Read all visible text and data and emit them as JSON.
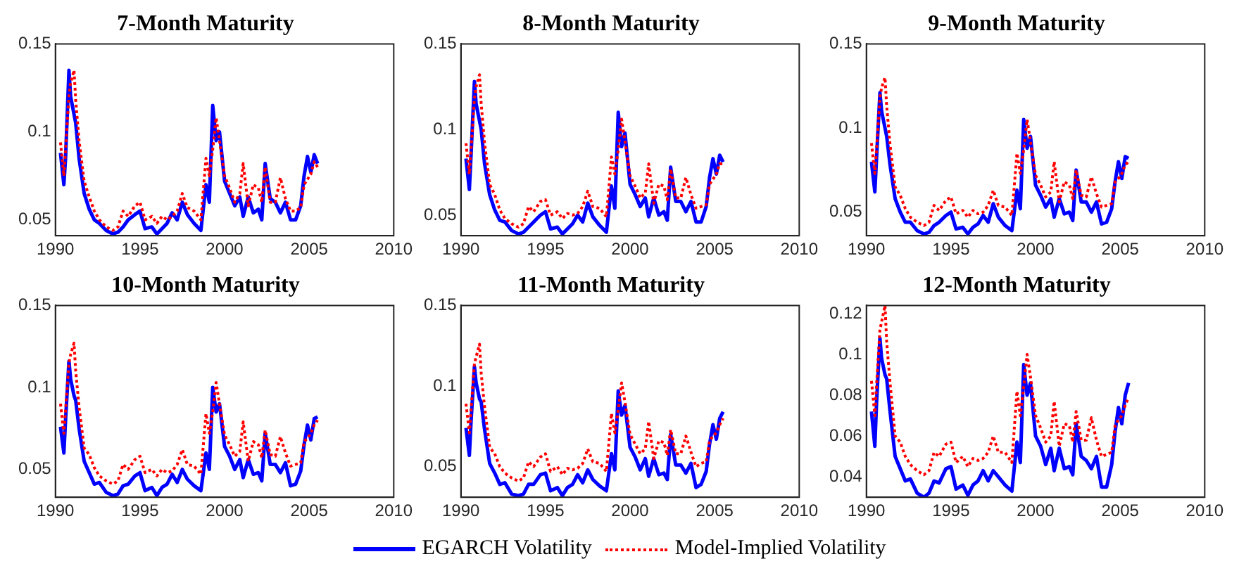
{
  "chart_data": [
    {
      "type": "line",
      "title": "7-Month Maturity",
      "xlim": [
        1990,
        2010
      ],
      "xticks": [
        1990,
        1995,
        2000,
        2005,
        2010
      ],
      "ylim": [
        0.041,
        0.15
      ],
      "yticks": [
        0.05,
        0.1,
        0.15
      ],
      "grid": false,
      "legend": "bottom",
      "marker": "none",
      "x": [
        1990.3,
        1990.5,
        1990.6,
        1990.8,
        1990.9,
        1991.1,
        1991.2,
        1991.4,
        1991.7,
        1992.0,
        1992.3,
        1992.6,
        1993.0,
        1993.4,
        1993.7,
        1994.0,
        1994.3,
        1994.7,
        1995.0,
        1995.3,
        1995.7,
        1996.0,
        1996.3,
        1996.6,
        1996.9,
        1997.2,
        1997.5,
        1997.8,
        1998.2,
        1998.6,
        1998.9,
        1999.1,
        1999.3,
        1999.5,
        1999.7,
        2000.0,
        2000.3,
        2000.6,
        2000.9,
        2001.1,
        2001.4,
        2001.7,
        2002.0,
        2002.2,
        2002.4,
        2002.7,
        2003.0,
        2003.3,
        2003.6,
        2003.9,
        2004.2,
        2004.5,
        2004.7,
        2004.9,
        2005.1,
        2005.3,
        2005.5
      ],
      "series": [
        {
          "name": "EGARCH Volatility",
          "color": "#0000ff",
          "line_style": "solid",
          "values": [
            0.088,
            0.07,
            0.085,
            0.135,
            0.12,
            0.11,
            0.105,
            0.085,
            0.065,
            0.056,
            0.05,
            0.048,
            0.044,
            0.042,
            0.043,
            0.046,
            0.05,
            0.053,
            0.055,
            0.045,
            0.046,
            0.042,
            0.045,
            0.048,
            0.054,
            0.05,
            0.06,
            0.053,
            0.048,
            0.044,
            0.07,
            0.06,
            0.115,
            0.095,
            0.1,
            0.072,
            0.065,
            0.058,
            0.063,
            0.052,
            0.063,
            0.054,
            0.056,
            0.05,
            0.082,
            0.062,
            0.06,
            0.054,
            0.06,
            0.05,
            0.05,
            0.058,
            0.075,
            0.086,
            0.077,
            0.087,
            0.082
          ]
        },
        {
          "name": "Model-Implied Volatility",
          "color": "#ff0000",
          "line_style": "dotted",
          "values": [
            0.094,
            0.075,
            0.09,
            0.12,
            0.128,
            0.135,
            0.118,
            0.095,
            0.072,
            0.063,
            0.055,
            0.05,
            0.046,
            0.044,
            0.046,
            0.055,
            0.052,
            0.058,
            0.06,
            0.05,
            0.052,
            0.048,
            0.052,
            0.05,
            0.052,
            0.055,
            0.065,
            0.057,
            0.055,
            0.05,
            0.085,
            0.075,
            0.09,
            0.108,
            0.095,
            0.075,
            0.068,
            0.06,
            0.065,
            0.082,
            0.058,
            0.07,
            0.068,
            0.06,
            0.08,
            0.06,
            0.06,
            0.074,
            0.062,
            0.055,
            0.055,
            0.057,
            0.07,
            0.073,
            0.076,
            0.083,
            0.08
          ]
        }
      ]
    },
    {
      "type": "line",
      "title": "8-Month Maturity",
      "xlim": [
        1990,
        2010
      ],
      "xticks": [
        1990,
        1995,
        2000,
        2005,
        2010
      ],
      "ylim": [
        0.038,
        0.15
      ],
      "yticks": [
        0.05,
        0.1,
        0.15
      ],
      "grid": false,
      "legend": "bottom",
      "marker": "none",
      "x": [
        1990.3,
        1990.5,
        1990.6,
        1990.8,
        1990.9,
        1991.1,
        1991.2,
        1991.4,
        1991.7,
        1992.0,
        1992.3,
        1992.6,
        1993.0,
        1993.4,
        1993.7,
        1994.0,
        1994.3,
        1994.7,
        1995.0,
        1995.3,
        1995.7,
        1996.0,
        1996.3,
        1996.6,
        1996.9,
        1997.2,
        1997.5,
        1997.8,
        1998.2,
        1998.6,
        1998.9,
        1999.1,
        1999.3,
        1999.5,
        1999.7,
        2000.0,
        2000.3,
        2000.6,
        2000.9,
        2001.1,
        2001.4,
        2001.7,
        2002.0,
        2002.2,
        2002.4,
        2002.7,
        2003.0,
        2003.3,
        2003.6,
        2003.9,
        2004.2,
        2004.5,
        2004.7,
        2004.9,
        2005.1,
        2005.3,
        2005.5
      ],
      "series": [
        {
          "name": "EGARCH Volatility",
          "color": "#0000ff",
          "line_style": "solid",
          "values": [
            0.083,
            0.065,
            0.085,
            0.128,
            0.115,
            0.105,
            0.1,
            0.08,
            0.062,
            0.053,
            0.047,
            0.046,
            0.041,
            0.039,
            0.04,
            0.043,
            0.046,
            0.05,
            0.052,
            0.042,
            0.043,
            0.039,
            0.042,
            0.045,
            0.05,
            0.046,
            0.057,
            0.049,
            0.044,
            0.04,
            0.067,
            0.054,
            0.11,
            0.09,
            0.098,
            0.068,
            0.062,
            0.055,
            0.06,
            0.049,
            0.06,
            0.05,
            0.052,
            0.047,
            0.078,
            0.058,
            0.058,
            0.052,
            0.058,
            0.046,
            0.046,
            0.055,
            0.072,
            0.083,
            0.074,
            0.085,
            0.081
          ]
        },
        {
          "name": "Model-Implied Volatility",
          "color": "#ff0000",
          "line_style": "dotted",
          "values": [
            0.092,
            0.074,
            0.088,
            0.118,
            0.125,
            0.132,
            0.115,
            0.092,
            0.068,
            0.062,
            0.053,
            0.048,
            0.045,
            0.043,
            0.045,
            0.055,
            0.052,
            0.058,
            0.059,
            0.05,
            0.052,
            0.048,
            0.051,
            0.05,
            0.051,
            0.055,
            0.064,
            0.055,
            0.054,
            0.049,
            0.084,
            0.074,
            0.088,
            0.106,
            0.093,
            0.073,
            0.067,
            0.06,
            0.063,
            0.08,
            0.057,
            0.068,
            0.067,
            0.059,
            0.077,
            0.06,
            0.06,
            0.072,
            0.062,
            0.054,
            0.055,
            0.056,
            0.068,
            0.071,
            0.074,
            0.08,
            0.08
          ]
        }
      ]
    },
    {
      "type": "line",
      "title": "9-Month Maturity",
      "xlim": [
        1990,
        2010
      ],
      "xticks": [
        1990,
        1995,
        2000,
        2005,
        2010
      ],
      "ylim": [
        0.036,
        0.15
      ],
      "yticks": [
        0.05,
        0.1,
        0.15
      ],
      "grid": false,
      "legend": "bottom",
      "marker": "none",
      "x": [
        1990.3,
        1990.5,
        1990.6,
        1990.8,
        1990.9,
        1991.1,
        1991.2,
        1991.4,
        1991.7,
        1992.0,
        1992.3,
        1992.6,
        1993.0,
        1993.4,
        1993.7,
        1994.0,
        1994.3,
        1994.7,
        1995.0,
        1995.3,
        1995.7,
        1996.0,
        1996.3,
        1996.6,
        1996.9,
        1997.2,
        1997.5,
        1997.8,
        1998.2,
        1998.6,
        1998.9,
        1999.1,
        1999.3,
        1999.5,
        1999.7,
        2000.0,
        2000.3,
        2000.6,
        2000.9,
        2001.1,
        2001.4,
        2001.7,
        2002.0,
        2002.2,
        2002.4,
        2002.7,
        2003.0,
        2003.3,
        2003.6,
        2003.9,
        2004.2,
        2004.5,
        2004.7,
        2004.9,
        2005.1,
        2005.3,
        2005.5
      ],
      "series": [
        {
          "name": "EGARCH Volatility",
          "color": "#0000ff",
          "line_style": "solid",
          "values": [
            0.08,
            0.062,
            0.082,
            0.121,
            0.11,
            0.1,
            0.095,
            0.078,
            0.058,
            0.05,
            0.044,
            0.044,
            0.039,
            0.037,
            0.038,
            0.042,
            0.044,
            0.048,
            0.05,
            0.04,
            0.041,
            0.037,
            0.041,
            0.043,
            0.048,
            0.044,
            0.055,
            0.047,
            0.042,
            0.039,
            0.063,
            0.052,
            0.105,
            0.088,
            0.095,
            0.066,
            0.06,
            0.053,
            0.058,
            0.047,
            0.058,
            0.049,
            0.05,
            0.045,
            0.075,
            0.056,
            0.056,
            0.05,
            0.056,
            0.043,
            0.044,
            0.052,
            0.068,
            0.08,
            0.07,
            0.083,
            0.082
          ]
        },
        {
          "name": "Model-Implied Volatility",
          "color": "#ff0000",
          "line_style": "dotted",
          "values": [
            0.091,
            0.073,
            0.087,
            0.118,
            0.124,
            0.13,
            0.113,
            0.09,
            0.065,
            0.06,
            0.052,
            0.047,
            0.044,
            0.042,
            0.044,
            0.054,
            0.051,
            0.057,
            0.059,
            0.049,
            0.051,
            0.047,
            0.051,
            0.049,
            0.05,
            0.054,
            0.063,
            0.054,
            0.053,
            0.048,
            0.085,
            0.073,
            0.087,
            0.105,
            0.092,
            0.072,
            0.066,
            0.059,
            0.062,
            0.08,
            0.056,
            0.068,
            0.066,
            0.058,
            0.075,
            0.06,
            0.059,
            0.071,
            0.061,
            0.053,
            0.054,
            0.055,
            0.068,
            0.07,
            0.073,
            0.078,
            0.08
          ]
        }
      ]
    },
    {
      "type": "line",
      "title": "10-Month Maturity",
      "xlim": [
        1990,
        2010
      ],
      "xticks": [
        1990,
        1995,
        2000,
        2005,
        2010
      ],
      "ylim": [
        0.033,
        0.15
      ],
      "yticks": [
        0.05,
        0.1,
        0.15
      ],
      "grid": false,
      "legend": "bottom",
      "marker": "none",
      "x": [
        1990.3,
        1990.5,
        1990.6,
        1990.8,
        1990.9,
        1991.1,
        1991.2,
        1991.4,
        1991.7,
        1992.0,
        1992.3,
        1992.6,
        1993.0,
        1993.4,
        1993.7,
        1994.0,
        1994.3,
        1994.7,
        1995.0,
        1995.3,
        1995.7,
        1996.0,
        1996.3,
        1996.6,
        1996.9,
        1997.2,
        1997.5,
        1997.8,
        1998.2,
        1998.6,
        1998.9,
        1999.1,
        1999.3,
        1999.5,
        1999.7,
        2000.0,
        2000.3,
        2000.6,
        2000.9,
        2001.1,
        2001.4,
        2001.7,
        2002.0,
        2002.2,
        2002.4,
        2002.7,
        2003.0,
        2003.3,
        2003.6,
        2003.9,
        2004.2,
        2004.5,
        2004.7,
        2004.9,
        2005.1,
        2005.3,
        2005.5
      ],
      "series": [
        {
          "name": "EGARCH Volatility",
          "color": "#0000ff",
          "line_style": "solid",
          "values": [
            0.076,
            0.06,
            0.08,
            0.116,
            0.105,
            0.095,
            0.092,
            0.075,
            0.055,
            0.048,
            0.041,
            0.042,
            0.036,
            0.034,
            0.035,
            0.04,
            0.041,
            0.046,
            0.048,
            0.037,
            0.039,
            0.034,
            0.039,
            0.041,
            0.047,
            0.042,
            0.05,
            0.044,
            0.04,
            0.037,
            0.06,
            0.05,
            0.1,
            0.085,
            0.09,
            0.064,
            0.058,
            0.05,
            0.056,
            0.045,
            0.056,
            0.047,
            0.048,
            0.043,
            0.072,
            0.053,
            0.053,
            0.048,
            0.054,
            0.04,
            0.041,
            0.049,
            0.065,
            0.077,
            0.068,
            0.081,
            0.082
          ]
        },
        {
          "name": "Model-Implied Volatility",
          "color": "#ff0000",
          "line_style": "dotted",
          "values": [
            0.09,
            0.072,
            0.086,
            0.115,
            0.12,
            0.127,
            0.11,
            0.088,
            0.063,
            0.059,
            0.051,
            0.046,
            0.043,
            0.041,
            0.043,
            0.053,
            0.05,
            0.056,
            0.058,
            0.048,
            0.05,
            0.046,
            0.05,
            0.048,
            0.049,
            0.053,
            0.062,
            0.053,
            0.052,
            0.047,
            0.084,
            0.072,
            0.085,
            0.103,
            0.09,
            0.071,
            0.065,
            0.058,
            0.061,
            0.079,
            0.055,
            0.067,
            0.065,
            0.057,
            0.074,
            0.059,
            0.058,
            0.07,
            0.06,
            0.052,
            0.053,
            0.054,
            0.067,
            0.069,
            0.072,
            0.077,
            0.08
          ]
        }
      ]
    },
    {
      "type": "line",
      "title": "11-Month Maturity",
      "xlim": [
        1990,
        2010
      ],
      "xticks": [
        1990,
        1995,
        2000,
        2005,
        2010
      ],
      "ylim": [
        0.031,
        0.15
      ],
      "yticks": [
        0.05,
        0.1,
        0.15
      ],
      "grid": false,
      "legend": "bottom",
      "marker": "none",
      "x": [
        1990.3,
        1990.5,
        1990.6,
        1990.8,
        1990.9,
        1991.1,
        1991.2,
        1991.4,
        1991.7,
        1992.0,
        1992.3,
        1992.6,
        1993.0,
        1993.4,
        1993.7,
        1994.0,
        1994.3,
        1994.7,
        1995.0,
        1995.3,
        1995.7,
        1996.0,
        1996.3,
        1996.6,
        1996.9,
        1997.2,
        1997.5,
        1997.8,
        1998.2,
        1998.6,
        1998.9,
        1999.1,
        1999.3,
        1999.5,
        1999.7,
        2000.0,
        2000.3,
        2000.6,
        2000.9,
        2001.1,
        2001.4,
        2001.7,
        2002.0,
        2002.2,
        2002.4,
        2002.7,
        2003.0,
        2003.3,
        2003.6,
        2003.9,
        2004.2,
        2004.5,
        2004.7,
        2004.9,
        2005.1,
        2005.3,
        2005.5
      ],
      "series": [
        {
          "name": "EGARCH Volatility",
          "color": "#0000ff",
          "line_style": "solid",
          "values": [
            0.074,
            0.057,
            0.078,
            0.112,
            0.102,
            0.092,
            0.09,
            0.073,
            0.052,
            0.046,
            0.039,
            0.04,
            0.033,
            0.032,
            0.033,
            0.039,
            0.039,
            0.045,
            0.046,
            0.035,
            0.037,
            0.032,
            0.037,
            0.039,
            0.045,
            0.04,
            0.048,
            0.042,
            0.038,
            0.035,
            0.058,
            0.048,
            0.097,
            0.082,
            0.088,
            0.062,
            0.056,
            0.048,
            0.055,
            0.044,
            0.055,
            0.045,
            0.046,
            0.042,
            0.07,
            0.051,
            0.051,
            0.046,
            0.052,
            0.037,
            0.039,
            0.047,
            0.064,
            0.076,
            0.067,
            0.08,
            0.084
          ]
        },
        {
          "name": "Model-Implied Volatility",
          "color": "#ff0000",
          "line_style": "dotted",
          "values": [
            0.089,
            0.071,
            0.085,
            0.114,
            0.118,
            0.126,
            0.108,
            0.087,
            0.062,
            0.058,
            0.05,
            0.046,
            0.043,
            0.041,
            0.043,
            0.053,
            0.05,
            0.056,
            0.058,
            0.047,
            0.05,
            0.045,
            0.049,
            0.048,
            0.049,
            0.052,
            0.061,
            0.053,
            0.052,
            0.047,
            0.083,
            0.071,
            0.085,
            0.102,
            0.09,
            0.07,
            0.064,
            0.058,
            0.061,
            0.078,
            0.055,
            0.066,
            0.065,
            0.057,
            0.073,
            0.058,
            0.058,
            0.069,
            0.059,
            0.05,
            0.052,
            0.053,
            0.066,
            0.069,
            0.071,
            0.076,
            0.08
          ]
        }
      ]
    },
    {
      "type": "line",
      "title": "12-Month Maturity",
      "xlim": [
        1990,
        2010
      ],
      "xticks": [
        1990,
        1995,
        2000,
        2005,
        2010
      ],
      "ylim": [
        0.03,
        0.124
      ],
      "yticks": [
        0.04,
        0.06,
        0.08,
        0.1,
        0.12
      ],
      "grid": false,
      "legend": "bottom",
      "marker": "none",
      "x": [
        1990.3,
        1990.5,
        1990.6,
        1990.8,
        1990.9,
        1991.1,
        1991.2,
        1991.4,
        1991.7,
        1992.0,
        1992.3,
        1992.6,
        1993.0,
        1993.4,
        1993.7,
        1994.0,
        1994.3,
        1994.7,
        1995.0,
        1995.3,
        1995.7,
        1996.0,
        1996.3,
        1996.6,
        1996.9,
        1997.2,
        1997.5,
        1997.8,
        1998.2,
        1998.6,
        1998.9,
        1999.1,
        1999.3,
        1999.5,
        1999.7,
        2000.0,
        2000.3,
        2000.6,
        2000.9,
        2001.1,
        2001.4,
        2001.7,
        2002.0,
        2002.2,
        2002.4,
        2002.7,
        2003.0,
        2003.3,
        2003.6,
        2003.9,
        2004.2,
        2004.5,
        2004.7,
        2004.9,
        2005.1,
        2005.3,
        2005.5
      ],
      "series": [
        {
          "name": "EGARCH Volatility",
          "color": "#0000ff",
          "line_style": "solid",
          "values": [
            0.072,
            0.055,
            0.076,
            0.108,
            0.098,
            0.09,
            0.088,
            0.072,
            0.05,
            0.044,
            0.038,
            0.039,
            0.032,
            0.03,
            0.032,
            0.038,
            0.037,
            0.044,
            0.045,
            0.034,
            0.036,
            0.031,
            0.036,
            0.038,
            0.043,
            0.038,
            0.043,
            0.04,
            0.036,
            0.033,
            0.057,
            0.047,
            0.095,
            0.08,
            0.086,
            0.06,
            0.055,
            0.046,
            0.054,
            0.043,
            0.054,
            0.044,
            0.045,
            0.041,
            0.066,
            0.05,
            0.048,
            0.044,
            0.05,
            0.035,
            0.035,
            0.046,
            0.062,
            0.074,
            0.066,
            0.08,
            0.086
          ]
        },
        {
          "name": "Model-Implied Volatility",
          "color": "#ff0000",
          "line_style": "dotted",
          "values": [
            0.087,
            0.07,
            0.085,
            0.112,
            0.116,
            0.124,
            0.106,
            0.086,
            0.06,
            0.057,
            0.05,
            0.046,
            0.043,
            0.041,
            0.043,
            0.052,
            0.05,
            0.056,
            0.057,
            0.047,
            0.05,
            0.045,
            0.049,
            0.048,
            0.049,
            0.052,
            0.06,
            0.052,
            0.052,
            0.047,
            0.082,
            0.07,
            0.084,
            0.1,
            0.089,
            0.07,
            0.064,
            0.057,
            0.06,
            0.077,
            0.055,
            0.066,
            0.065,
            0.057,
            0.072,
            0.058,
            0.058,
            0.069,
            0.058,
            0.05,
            0.051,
            0.052,
            0.065,
            0.068,
            0.07,
            0.075,
            0.079
          ]
        }
      ]
    }
  ]
}
